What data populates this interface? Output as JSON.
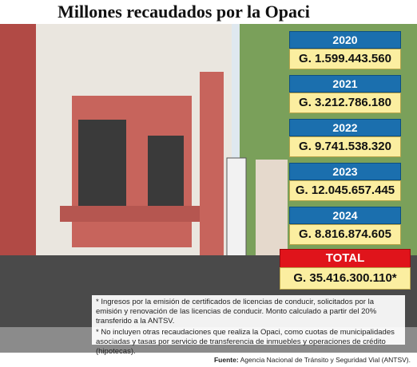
{
  "title": "Millones recaudados por la Opaci",
  "items": [
    {
      "year": "2020",
      "amount": "G. 1.599.443.560"
    },
    {
      "year": "2021",
      "amount": "G. 3.212.786.180"
    },
    {
      "year": "2022",
      "amount": "G. 9.741.538.320"
    },
    {
      "year": "2023",
      "amount": "G. 12.045.657.445"
    },
    {
      "year": "2024",
      "amount": "G. 8.816.874.605"
    }
  ],
  "total": {
    "label": "TOTAL",
    "amount": "G. 35.416.300.110*"
  },
  "notes": [
    "* Ingresos por la emisión de certificados de licencias de conducir, solicitados por la emisión y renovación de las licencias de conducir. Monto calculado a partir del 20% transferido a la ANTSV.",
    "* No incluyen otras recaudaciones que realiza la Opaci, como cuotas de municipalidades asociadas y tasas por servicio de transferencia de inmuebles y operaciones de crédito (hipotecas)."
  ],
  "source": {
    "label": "Fuente:",
    "text": "Agencia Nacional de Tránsito y Seguridad Vial (ANTSV)."
  }
}
